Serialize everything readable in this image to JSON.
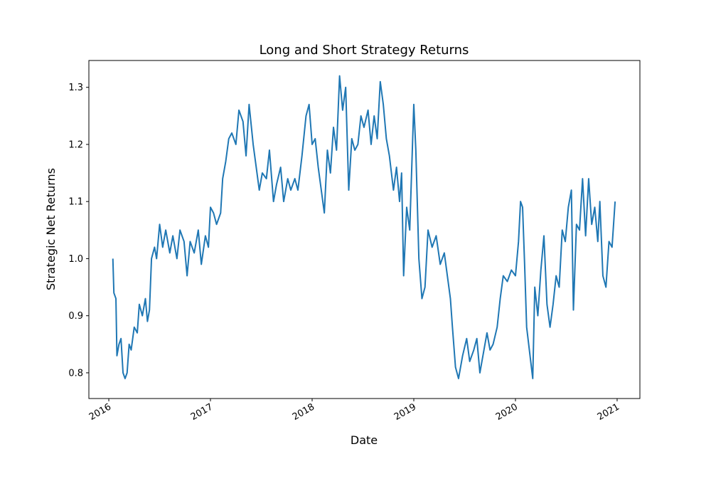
{
  "chart_data": {
    "type": "line",
    "title": "Long and Short Strategy Returns",
    "x_label": "Date",
    "y_label": "Strategic Net Returns",
    "color": "#1f77b4",
    "x": [
      2016.04,
      2016.05,
      2016.07,
      2016.08,
      2016.1,
      2016.12,
      2016.14,
      2016.16,
      2016.18,
      2016.2,
      2016.22,
      2016.25,
      2016.28,
      2016.3,
      2016.33,
      2016.36,
      2016.38,
      2016.4,
      2016.42,
      2016.45,
      2016.47,
      2016.5,
      2016.53,
      2016.56,
      2016.6,
      2016.63,
      2016.67,
      2016.7,
      2016.74,
      2016.77,
      2016.8,
      2016.84,
      2016.88,
      2016.91,
      2016.95,
      2016.98,
      2017.0,
      2017.03,
      2017.06,
      2017.1,
      2017.12,
      2017.15,
      2017.18,
      2017.21,
      2017.25,
      2017.28,
      2017.32,
      2017.35,
      2017.38,
      2017.42,
      2017.45,
      2017.48,
      2017.51,
      2017.55,
      2017.58,
      2017.62,
      2017.65,
      2017.69,
      2017.72,
      2017.76,
      2017.79,
      2017.83,
      2017.86,
      2017.9,
      2017.94,
      2017.97,
      2018.0,
      2018.03,
      2018.06,
      2018.09,
      2018.12,
      2018.15,
      2018.18,
      2018.21,
      2018.24,
      2018.27,
      2018.3,
      2018.33,
      2018.36,
      2018.39,
      2018.42,
      2018.45,
      2018.48,
      2018.51,
      2018.55,
      2018.58,
      2018.61,
      2018.64,
      2018.67,
      2018.7,
      2018.73,
      2018.76,
      2018.8,
      2018.83,
      2018.86,
      2018.88,
      2018.9,
      2018.93,
      2018.96,
      2019.0,
      2019.02,
      2019.05,
      2019.08,
      2019.11,
      2019.14,
      2019.18,
      2019.22,
      2019.26,
      2019.3,
      2019.33,
      2019.36,
      2019.38,
      2019.41,
      2019.44,
      2019.48,
      2019.52,
      2019.55,
      2019.59,
      2019.62,
      2019.65,
      2019.68,
      2019.72,
      2019.75,
      2019.78,
      2019.82,
      2019.85,
      2019.88,
      2019.92,
      2019.96,
      2020.0,
      2020.03,
      2020.05,
      2020.07,
      2020.09,
      2020.11,
      2020.13,
      2020.15,
      2020.17,
      2020.19,
      2020.22,
      2020.25,
      2020.28,
      2020.31,
      2020.34,
      2020.37,
      2020.4,
      2020.43,
      2020.46,
      2020.49,
      2020.52,
      2020.55,
      2020.57,
      2020.6,
      2020.63,
      2020.66,
      2020.69,
      2020.72,
      2020.75,
      2020.78,
      2020.81,
      2020.83,
      2020.86,
      2020.89,
      2020.92,
      2020.95,
      2020.98
    ],
    "values": [
      1.0,
      0.94,
      0.93,
      0.83,
      0.85,
      0.86,
      0.8,
      0.79,
      0.8,
      0.85,
      0.84,
      0.88,
      0.87,
      0.92,
      0.9,
      0.93,
      0.89,
      0.91,
      1.0,
      1.02,
      1.0,
      1.06,
      1.02,
      1.05,
      1.01,
      1.04,
      1.0,
      1.05,
      1.03,
      0.97,
      1.03,
      1.01,
      1.05,
      0.99,
      1.04,
      1.02,
      1.09,
      1.08,
      1.06,
      1.08,
      1.14,
      1.17,
      1.21,
      1.22,
      1.2,
      1.26,
      1.24,
      1.18,
      1.27,
      1.2,
      1.16,
      1.12,
      1.15,
      1.14,
      1.19,
      1.1,
      1.13,
      1.16,
      1.1,
      1.14,
      1.12,
      1.14,
      1.12,
      1.18,
      1.25,
      1.27,
      1.2,
      1.21,
      1.16,
      1.12,
      1.08,
      1.19,
      1.15,
      1.23,
      1.19,
      1.32,
      1.26,
      1.3,
      1.12,
      1.21,
      1.19,
      1.2,
      1.25,
      1.23,
      1.26,
      1.2,
      1.25,
      1.21,
      1.31,
      1.27,
      1.21,
      1.18,
      1.12,
      1.16,
      1.1,
      1.15,
      0.97,
      1.09,
      1.05,
      1.27,
      1.19,
      1.0,
      0.93,
      0.95,
      1.05,
      1.02,
      1.04,
      0.99,
      1.01,
      0.97,
      0.93,
      0.88,
      0.81,
      0.79,
      0.83,
      0.86,
      0.82,
      0.84,
      0.86,
      0.8,
      0.83,
      0.87,
      0.84,
      0.85,
      0.88,
      0.93,
      0.97,
      0.96,
      0.98,
      0.97,
      1.03,
      1.1,
      1.09,
      0.99,
      0.88,
      0.85,
      0.82,
      0.79,
      0.95,
      0.9,
      0.98,
      1.04,
      0.92,
      0.88,
      0.92,
      0.97,
      0.95,
      1.05,
      1.03,
      1.09,
      1.12,
      0.91,
      1.06,
      1.05,
      1.14,
      1.04,
      1.14,
      1.06,
      1.09,
      1.03,
      1.1,
      0.97,
      0.95,
      1.03,
      1.02,
      1.1
    ],
    "xlim": [
      2015.804,
      2021.224
    ],
    "xticks": [
      2016,
      2017,
      2018,
      2019,
      2020,
      2021
    ],
    "ylim": [
      0.755,
      1.347
    ],
    "yticks": [
      0.8,
      0.9,
      {
        "value": 1,
        "label": "1.0"
      },
      1.1,
      1.2,
      1.3
    ]
  }
}
